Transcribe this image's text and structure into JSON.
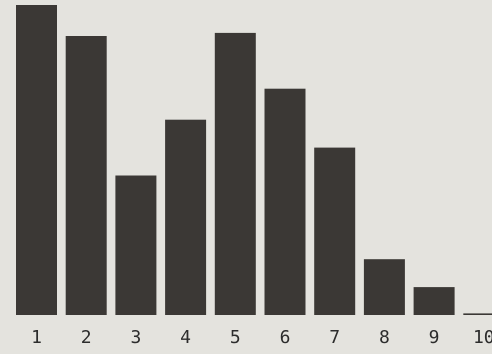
{
  "chart_data": {
    "type": "bar",
    "categories": [
      "1",
      "2",
      "3",
      "4",
      "5",
      "6",
      "7",
      "8",
      "9",
      "10"
    ],
    "values": [
      100,
      90,
      45,
      63,
      91,
      73,
      54,
      18,
      9,
      0.5
    ],
    "ylim": [
      0,
      100
    ],
    "grid": false,
    "legend": "none",
    "title": "",
    "xlabel": "",
    "ylabel": "",
    "colors": {
      "bar": "#3b3835",
      "background": "#e4e3de",
      "text": "#2c2c2c"
    }
  }
}
